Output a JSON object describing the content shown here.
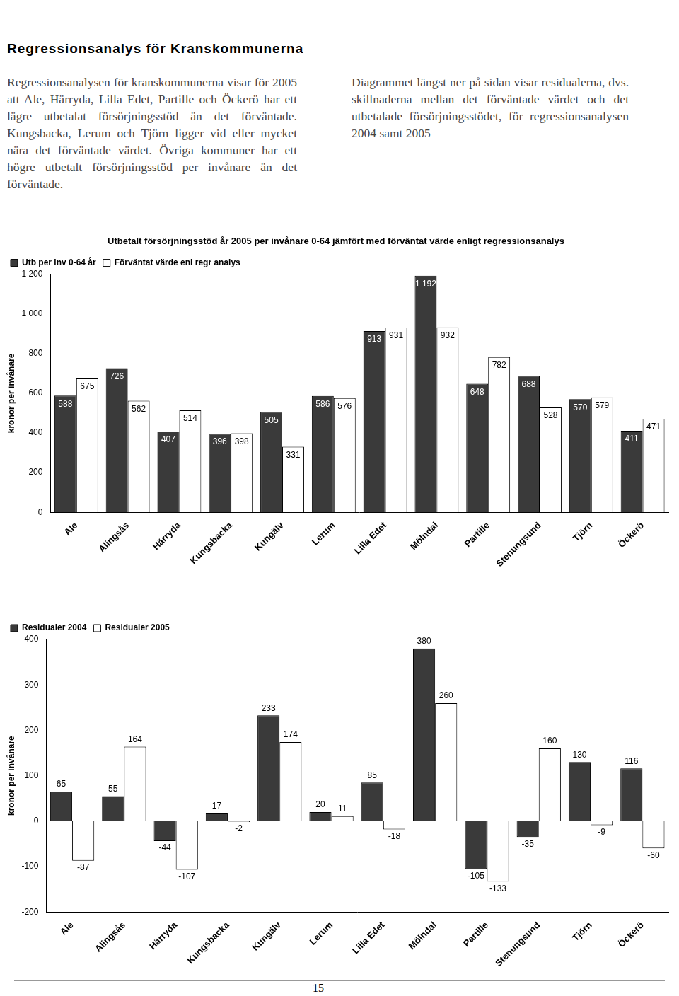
{
  "document": {
    "heading": "Regressionsanalys för Kranskommunerna",
    "left_paragraph": "Regressionsanalysen för kranskommunerna visar för 2005 att Ale, Härryda, Lilla Edet, Partille och Öckerö har ett lägre utbetalat försörjningsstöd än det förväntade. Kungsbacka, Lerum och Tjörn ligger vid eller mycket nära det förväntade värdet. Övriga kommuner har ett högre utbetalt försörjningsstöd per invånare än det förväntade.",
    "right_paragraph": "Diagrammet längst ner på sidan visar residualerna, dvs. skillnaderna mellan det förväntade värdet och det utbetalade försörjningsstödet, för regressionsanalysen 2004 samt 2005",
    "page_number": "15"
  },
  "chart_data": [
    {
      "type": "bar",
      "title": "Utbetalt försörjningsstöd år 2005 per invånare 0-64 jämfört med förväntat värde enligt regressionsanalys",
      "y_label": "kronor per invånare",
      "categories": [
        "Ale",
        "Alingsås",
        "Härryda",
        "Kungsbacka",
        "Kungälv",
        "Lerum",
        "Lilla Edet",
        "Mölndal",
        "Partille",
        "Stenungsund",
        "Tjörn",
        "Öckerö"
      ],
      "series": [
        {
          "name": "Utb per inv 0-64 år",
          "color": "#3a3a3a",
          "values": [
            588,
            726,
            407,
            396,
            505,
            586,
            913,
            1192,
            648,
            688,
            570,
            411
          ],
          "value_labels": [
            "588",
            "726",
            "407",
            "396",
            "505",
            "586",
            "913",
            "1 192",
            "648",
            "688",
            "570",
            "411"
          ]
        },
        {
          "name": "Förväntat värde enl regr analys",
          "color": "#ffffff",
          "values": [
            675,
            562,
            514,
            398,
            331,
            576,
            931,
            932,
            782,
            528,
            579,
            471
          ]
        }
      ],
      "ylim": [
        0,
        1200
      ],
      "yticks": [
        0,
        200,
        400,
        600,
        800,
        {
          "value": 1000,
          "label": "1 000"
        },
        {
          "value": 1200,
          "label": "1 200"
        }
      ],
      "grid": false,
      "legend": "top-left",
      "data_labels": true
    },
    {
      "type": "bar",
      "y_label": "kronor per invånare",
      "categories": [
        "Ale",
        "Alingsås",
        "Härryda",
        "Kungsbacka",
        "Kungälv",
        "Lerum",
        "Lilla Edet",
        "Mölndal",
        "Partille",
        "Stenungsund",
        "Tjörn",
        "Öckerö"
      ],
      "series": [
        {
          "name": "Residualer 2004",
          "color": "#3a3a3a",
          "values": [
            65,
            55,
            -44,
            17,
            233,
            20,
            85,
            380,
            -105,
            -35,
            130,
            116
          ]
        },
        {
          "name": "Residualer 2005",
          "color": "#ffffff",
          "values": [
            -87,
            164,
            -107,
            -2,
            174,
            11,
            -18,
            260,
            -133,
            160,
            -9,
            -60
          ]
        }
      ],
      "ylim": [
        -200,
        400
      ],
      "yticks": [
        -200,
        -100,
        0,
        100,
        200,
        300,
        400
      ],
      "grid": false,
      "legend": "top-left",
      "data_labels": true
    }
  ]
}
